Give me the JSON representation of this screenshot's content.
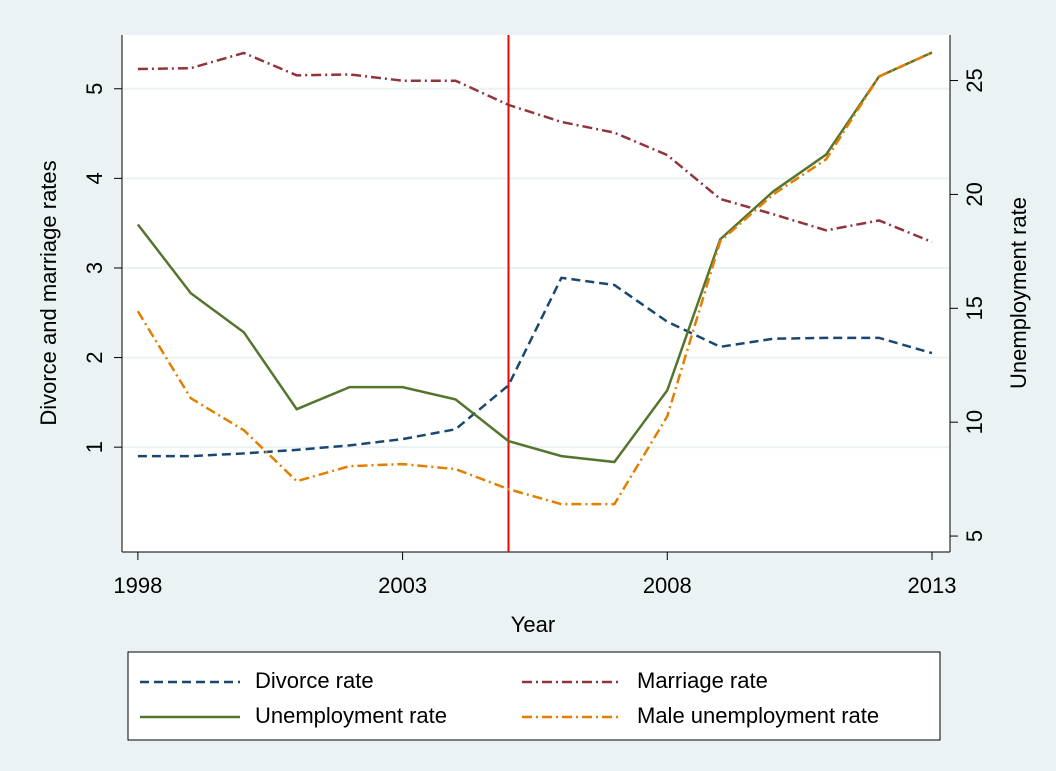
{
  "chart_data": {
    "type": "line",
    "x_label": "Year",
    "y_label": "Divorce and marriage rates",
    "y2_label": "Unemployment rate",
    "x": [
      1998,
      1999,
      2000,
      2001,
      2002,
      2003,
      2004,
      2005,
      2006,
      2007,
      2008,
      2009,
      2010,
      2011,
      2012,
      2013
    ],
    "xlim": [
      1997.7,
      2013.34
    ],
    "xticks": [
      1998,
      2003,
      2008,
      2013
    ],
    "ylim": [
      -0.17,
      5.6
    ],
    "yticks": [
      1,
      2,
      3,
      4,
      5
    ],
    "y2lim": [
      4.3,
      27
    ],
    "y2ticks": [
      5,
      10,
      15,
      20,
      25
    ],
    "grid": true,
    "vline": 2005,
    "vline_color": "#ff0000",
    "legend_position": "bottom",
    "series": [
      {
        "name": "Divorce rate",
        "color": "#1a476f",
        "dash": "dashed",
        "axis": "y",
        "values": [
          0.9,
          0.9,
          0.93,
          0.97,
          1.02,
          1.09,
          1.2,
          1.69,
          2.89,
          2.81,
          2.4,
          2.12,
          2.21,
          2.22,
          2.22,
          2.05
        ]
      },
      {
        "name": "Marriage rate",
        "color": "#90353b",
        "dash": "dashdot",
        "axis": "y",
        "values": [
          5.22,
          5.23,
          5.4,
          5.15,
          5.16,
          5.09,
          5.09,
          4.82,
          4.63,
          4.51,
          4.26,
          3.77,
          3.6,
          3.42,
          3.53,
          3.29
        ]
      },
      {
        "name": "Unemployment rate",
        "color": "#55752f",
        "dash": "solid",
        "axis": "y2",
        "values": [
          18.68,
          15.66,
          13.95,
          10.57,
          11.54,
          11.54,
          11.0,
          9.17,
          8.51,
          8.25,
          11.4,
          18.03,
          20.13,
          21.75,
          25.18,
          26.23
        ]
      },
      {
        "name": "Male unemployment rate",
        "color": "#e37e00",
        "dash": "dashdot",
        "axis": "y2",
        "values": [
          14.87,
          11.05,
          9.65,
          7.41,
          8.07,
          8.16,
          7.94,
          7.06,
          6.4,
          6.4,
          10.26,
          17.94,
          20.0,
          21.54,
          25.18,
          26.23
        ]
      }
    ]
  }
}
